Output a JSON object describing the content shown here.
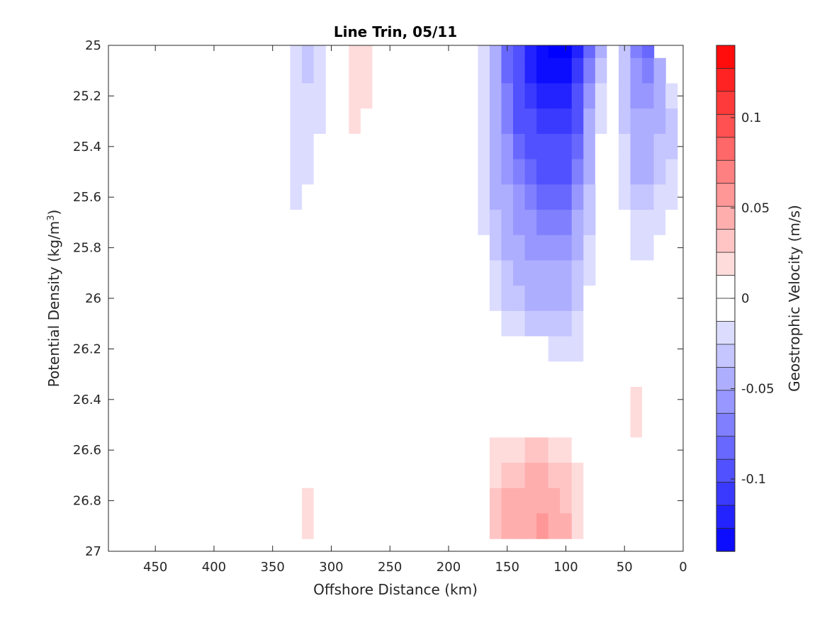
{
  "chart_data": {
    "type": "heatmap",
    "title": "Line Trin, 05/11",
    "xlabel": "Offshore Distance (km)",
    "ylabel_main": "Potential Density (kg/m",
    "ylabel_sup": "3",
    "ylabel_close": ")",
    "x_reversed": true,
    "xlim": [
      0,
      490
    ],
    "ylim": [
      25,
      27
    ],
    "y_reversed": true,
    "xticks": [
      450,
      400,
      350,
      300,
      250,
      200,
      150,
      100,
      50,
      0
    ],
    "yticks": [
      25,
      25.2,
      25.4,
      25.6,
      25.8,
      26,
      26.2,
      26.4,
      26.6,
      26.8,
      27
    ],
    "colorbar": {
      "label": "Geostrophic Velocity (m/s)",
      "range": [
        -0.14,
        0.14
      ],
      "levels": 22,
      "ticks": [
        0.1,
        0.05,
        0,
        -0.05,
        -0.1
      ],
      "neg_color": "#0000ff",
      "pos_color": "#ff0000"
    },
    "x_km": [
      480,
      470,
      440,
      430,
      420,
      410,
      400,
      390,
      380,
      370,
      360,
      350,
      340,
      330,
      320,
      310,
      300,
      290,
      280,
      270,
      260,
      250,
      240,
      230,
      220,
      210,
      200,
      190,
      180,
      170,
      160,
      150,
      140,
      130,
      120,
      110,
      100,
      90,
      80,
      70,
      60,
      50,
      40,
      30,
      20,
      10
    ],
    "density": [
      25.0,
      25.1,
      25.2,
      25.3,
      25.4,
      25.5,
      25.6,
      25.7,
      25.8,
      25.9,
      26.0,
      26.1,
      26.2,
      26.3,
      26.4,
      26.5,
      26.6,
      26.7,
      26.8,
      26.9
    ],
    "velocity_cm_s": [
      [
        1,
        1,
        0,
        -1,
        -1,
        -1,
        0,
        1,
        1,
        0,
        0,
        0,
        -1,
        -2,
        -3,
        -2,
        0,
        1,
        2,
        2,
        1,
        0,
        0,
        0,
        0,
        0,
        1,
        1,
        0,
        -2,
        -5,
        -8,
        -10,
        -12,
        -13,
        -14,
        -14,
        -12,
        -8,
        -4,
        1,
        -3,
        -7,
        -8,
        0,
        0
      ],
      [
        1,
        1,
        0,
        -1,
        -1,
        -1,
        0,
        1,
        1,
        0,
        0,
        0,
        -1,
        -2,
        -3,
        -2,
        0,
        1,
        2,
        2,
        1,
        0,
        0,
        0,
        0,
        0,
        1,
        1,
        0,
        -2,
        -5,
        -8,
        -10,
        -12,
        -13,
        -13,
        -13,
        -11,
        -7,
        -3,
        1,
        -3,
        -6,
        -7,
        -4,
        0
      ],
      [
        1,
        1,
        0,
        -1,
        -1,
        -1,
        0,
        1,
        1,
        0,
        0,
        0,
        -1,
        -2,
        -2,
        -2,
        0,
        1,
        2,
        2,
        1,
        0,
        0,
        0,
        0,
        0,
        1,
        1,
        0,
        -2,
        -5,
        -7,
        -9,
        -11,
        -12,
        -12,
        -12,
        -10,
        -6,
        -2,
        1,
        -3,
        -6,
        -6,
        -4,
        -2
      ],
      [
        1,
        1,
        0,
        -1,
        -1,
        -1,
        0,
        1,
        1,
        0,
        0,
        0,
        -1,
        -2,
        -2,
        -2,
        0,
        1,
        2,
        1,
        1,
        0,
        0,
        0,
        0,
        0,
        1,
        1,
        0,
        -2,
        -5,
        -7,
        -9,
        -10,
        -11,
        -11,
        -11,
        -9,
        -5,
        -2,
        1,
        -3,
        -5,
        -5,
        -4,
        -3
      ],
      [
        1,
        1,
        0,
        -1,
        -1,
        -1,
        0,
        1,
        0,
        0,
        0,
        0,
        -1,
        -2,
        -2,
        -1,
        0,
        1,
        1,
        1,
        1,
        0,
        0,
        0,
        0,
        0,
        1,
        1,
        0,
        -2,
        -4,
        -6,
        -8,
        -9,
        -10,
        -10,
        -10,
        -8,
        -5,
        -1,
        1,
        -2,
        -5,
        -5,
        -3,
        -3
      ],
      [
        1,
        0,
        0,
        -1,
        -1,
        -1,
        0,
        0,
        0,
        0,
        0,
        0,
        -1,
        -2,
        -2,
        -1,
        0,
        1,
        1,
        1,
        1,
        0,
        0,
        0,
        0,
        0,
        1,
        1,
        0,
        -2,
        -4,
        -6,
        -7,
        -8,
        -9,
        -9,
        -9,
        -7,
        -4,
        -1,
        1,
        -2,
        -4,
        -4,
        -3,
        -2
      ],
      [
        1,
        0,
        0,
        0,
        -1,
        -1,
        0,
        0,
        0,
        0,
        0,
        0,
        -1,
        -2,
        -1,
        -1,
        0,
        1,
        1,
        1,
        0,
        0,
        0,
        0,
        0,
        0,
        1,
        1,
        0,
        -2,
        -4,
        -5,
        -6,
        -7,
        -8,
        -8,
        -8,
        -6,
        -3,
        0,
        1,
        -2,
        -3,
        -3,
        -2,
        -2
      ],
      [
        0,
        0,
        0,
        0,
        0,
        -1,
        0,
        0,
        1,
        0,
        0,
        0,
        -1,
        -1,
        -1,
        0,
        0,
        0,
        1,
        0,
        0,
        0,
        0,
        0,
        0,
        0,
        1,
        0,
        0,
        -2,
        -3,
        -5,
        -6,
        -6,
        -7,
        -7,
        -7,
        -5,
        -3,
        0,
        1,
        -1,
        -2,
        -2,
        -2,
        -1
      ],
      [
        0,
        0,
        0,
        0,
        0,
        0,
        0,
        0,
        1,
        0,
        0,
        0,
        -1,
        -1,
        -1,
        0,
        0,
        0,
        0,
        0,
        0,
        0,
        0,
        0,
        0,
        0,
        1,
        0,
        0,
        -1,
        -3,
        -4,
        -5,
        -6,
        -6,
        -6,
        -6,
        -4,
        -2,
        0,
        1,
        -1,
        -2,
        -2,
        -1,
        -1
      ],
      [
        0,
        0,
        0,
        0,
        0,
        0,
        0,
        0,
        1,
        0,
        0,
        0,
        -1,
        -1,
        0,
        0,
        0,
        0,
        0,
        0,
        0,
        0,
        0,
        0,
        0,
        0,
        0,
        0,
        0,
        -1,
        -2,
        -3,
        -4,
        -5,
        -5,
        -5,
        -5,
        -3,
        -2,
        0,
        1,
        0,
        -1,
        -1,
        -1,
        -1
      ],
      [
        0,
        0,
        0,
        0,
        0,
        0,
        0,
        0,
        1,
        0,
        0,
        0,
        0,
        0,
        0,
        0,
        0,
        0,
        0,
        0,
        0,
        0,
        0,
        0,
        0,
        0,
        0,
        0,
        0,
        -1,
        -2,
        -3,
        -3,
        -4,
        -4,
        -4,
        -4,
        -3,
        -1,
        0,
        1,
        1,
        0,
        0,
        0,
        0
      ],
      [
        0,
        0,
        0,
        0,
        0,
        0,
        0,
        0,
        0,
        0,
        0,
        0,
        0,
        0,
        0,
        0,
        0,
        0,
        0,
        0,
        0,
        0,
        0,
        0,
        0,
        0,
        0,
        0,
        0,
        -1,
        -1,
        -2,
        -2,
        -3,
        -3,
        -3,
        -3,
        -2,
        -1,
        0,
        1,
        1,
        0,
        0,
        0,
        0
      ],
      [
        0,
        0,
        0,
        0,
        0,
        0,
        0,
        0,
        0,
        0,
        0,
        0,
        0,
        0,
        0,
        0,
        0,
        0,
        0,
        0,
        0,
        0,
        0,
        0,
        0,
        0,
        0,
        0,
        0,
        0,
        -1,
        -1,
        -1,
        -1,
        -1,
        -2,
        -2,
        -2,
        -1,
        0,
        1,
        1,
        1,
        1,
        0,
        0
      ],
      [
        0,
        0,
        0,
        0,
        0,
        0,
        0,
        0,
        0,
        0,
        0,
        0,
        0,
        0,
        0,
        0,
        0,
        0,
        0,
        0,
        0,
        0,
        0,
        0,
        0,
        0,
        0,
        0,
        0,
        0,
        0,
        0,
        0,
        0,
        0,
        -1,
        -1,
        -1,
        -1,
        0,
        1,
        1,
        1,
        1,
        1,
        0
      ],
      [
        0,
        0,
        0,
        0,
        0,
        0,
        0,
        0,
        0,
        0,
        0,
        0,
        0,
        0,
        0,
        0,
        0,
        0,
        0,
        0,
        0,
        0,
        0,
        0,
        0,
        0,
        0,
        0,
        0,
        0,
        0,
        0,
        0,
        0,
        0,
        0,
        0,
        -1,
        -1,
        0,
        1,
        1,
        2,
        1,
        1,
        0
      ],
      [
        0,
        0,
        0,
        0,
        0,
        0,
        0,
        0,
        0,
        0,
        0,
        0,
        0,
        0,
        0,
        0,
        0,
        0,
        0,
        0,
        0,
        0,
        0,
        0,
        0,
        0,
        0,
        0,
        0,
        1,
        1,
        1,
        1,
        1,
        1,
        1,
        1,
        0,
        0,
        0,
        1,
        1,
        2,
        1,
        1,
        0
      ],
      [
        0,
        0,
        0,
        0,
        0,
        0,
        0,
        0,
        0,
        0,
        0,
        0,
        0,
        0,
        1,
        0,
        0,
        0,
        -1,
        0,
        0,
        0,
        0,
        0,
        0,
        0,
        0,
        0,
        0,
        1,
        2,
        2,
        2,
        3,
        3,
        2,
        2,
        1,
        1,
        0,
        1,
        1,
        1,
        1,
        0,
        0
      ],
      [
        0,
        0,
        0,
        0,
        0,
        0,
        0,
        0,
        0,
        0,
        0,
        0,
        0,
        1,
        1,
        1,
        0,
        -1,
        -1,
        -1,
        0,
        0,
        0,
        0,
        0,
        0,
        -1,
        -1,
        0,
        1,
        2,
        3,
        3,
        4,
        4,
        3,
        3,
        2,
        1,
        0,
        0,
        0,
        0,
        0,
        0,
        0
      ],
      [
        -1,
        0,
        0,
        0,
        0,
        0,
        1,
        0,
        -1,
        0,
        0,
        0,
        0,
        1,
        2,
        1,
        0,
        -1,
        -1,
        -1,
        0,
        0,
        0,
        0,
        0,
        0,
        -1,
        -1,
        0,
        1,
        3,
        4,
        4,
        5,
        5,
        4,
        3,
        2,
        1,
        0,
        -1,
        -1,
        0,
        0,
        0,
        0
      ],
      [
        -1,
        -1,
        0,
        0,
        0,
        0,
        1,
        0,
        -1,
        0,
        0,
        0,
        1,
        1,
        2,
        1,
        0,
        -1,
        -1,
        -1,
        0,
        0,
        0,
        0,
        0,
        0,
        -1,
        -1,
        0,
        1,
        3,
        4,
        5,
        5,
        6,
        5,
        4,
        2,
        1,
        0,
        -1,
        -1,
        0,
        0,
        0,
        0
      ]
    ]
  }
}
